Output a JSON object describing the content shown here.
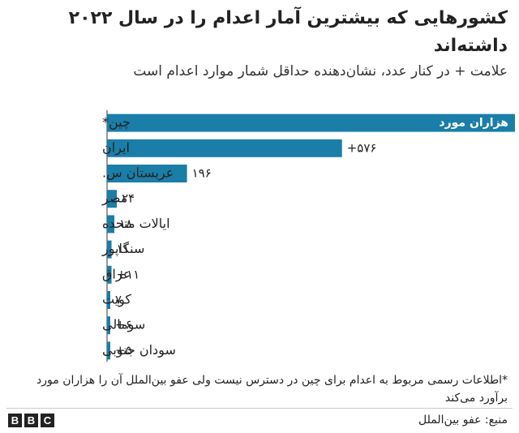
{
  "title": "کشورهایی که بیشترین آمار اعدام را در سال ۲۰۲۲ داشته‌اند",
  "subtitle": "علامت + در کنار عدد، نشان‌دهنده حداقل شمار موارد اعدام است",
  "footnote": "*اطلاعات رسمی مربوط به اعدام برای چین در دسترس نیست ولی عفو بین‌الملل آن را هزاران مورد برآورد می‌کند",
  "source": "منبع: عفو بین‌الملل",
  "logo": [
    "B",
    "B",
    "C"
  ],
  "colors": {
    "bar": "#1a7ea8",
    "text": "#222222"
  },
  "chart_data": {
    "type": "bar",
    "orientation": "horizontal",
    "categories": [
      "چین*",
      "ایران",
      "عربستان س.",
      "مصر",
      "ایالات متحده",
      "سنگاپور",
      "عراق",
      "کویت",
      "سومالی",
      "سودان جنوبی"
    ],
    "values": [
      1000,
      576,
      196,
      24,
      18,
      11,
      11,
      7,
      6,
      5
    ],
    "value_labels": [
      "هزاران مورد",
      "+۵۷۶",
      "۱۹۶",
      "۲۴",
      "۱۸",
      "۱۱",
      "+۱۱",
      "۷",
      "+۶",
      "+۵"
    ],
    "label_inside": [
      true,
      false,
      false,
      false,
      false,
      false,
      false,
      false,
      false,
      false
    ],
    "xlim": [
      0,
      1000
    ],
    "grid": false,
    "legend": "none"
  }
}
